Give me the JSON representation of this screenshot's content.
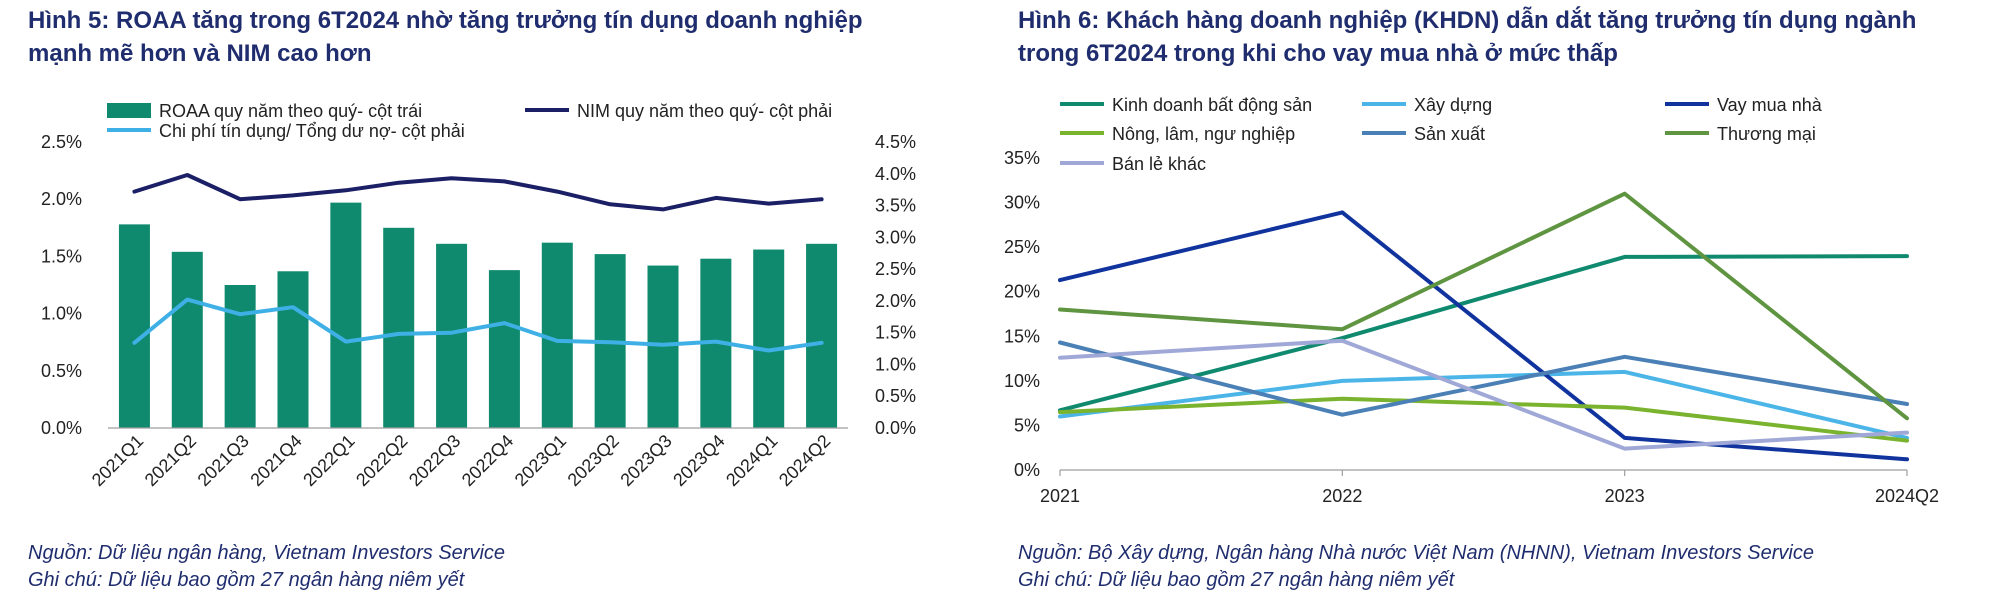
{
  "figures": [
    {
      "title_line1": "Hình 5: ROAA tăng trong 6T2024 nhờ tăng trưởng tín dụng doanh nghiệp",
      "title_line2": "mạnh mẽ hơn và NIM cao hơn",
      "source": "Nguồn: Dữ liệu ngân hàng, Vietnam Investors Service",
      "note": "Ghi chú: Dữ liệu bao gồm 27 ngân hàng niêm yết"
    },
    {
      "title_line1": "Hình 6: Khách hàng doanh nghiệp (KHDN) dẫn dắt tăng trưởng tín dụng ngành",
      "title_line2": "trong 6T2024 trong khi cho vay mua nhà ở mức thấp",
      "source": "Nguồn: Bộ Xây dựng, Ngân hàng Nhà nước Việt Nam (NHNN), Vietnam Investors Service",
      "note": "Ghi chú: Dữ liệu bao gồm 27 ngân hàng niêm yết"
    }
  ],
  "chart_data": [
    {
      "type": "bar",
      "categories": [
        "2021Q1",
        "2021Q2",
        "2021Q3",
        "2021Q4",
        "2022Q1",
        "2022Q2",
        "2022Q3",
        "2022Q4",
        "2023Q1",
        "2023Q2",
        "2023Q3",
        "2023Q4",
        "2024Q1",
        "2024Q2"
      ],
      "series": [
        {
          "name": "ROAA quy năm theo quý- cột trái",
          "kind": "bar",
          "axis": "left",
          "color": "#0f8a6e",
          "values": [
            1.78,
            1.54,
            1.25,
            1.37,
            1.97,
            1.75,
            1.61,
            1.38,
            1.62,
            1.52,
            1.42,
            1.48,
            1.56,
            1.61
          ]
        },
        {
          "name": "NIM quy năm theo quý- cột phải",
          "kind": "line",
          "axis": "right",
          "color": "#1b1f66",
          "values": [
            3.72,
            3.98,
            3.6,
            3.66,
            3.74,
            3.86,
            3.93,
            3.88,
            3.72,
            3.52,
            3.44,
            3.62,
            3.53,
            3.6
          ]
        },
        {
          "name": "Chi phí tín dụng/ Tổng dư nợ- cột phải",
          "kind": "line",
          "axis": "right",
          "color": "#3fb0e6",
          "values": [
            1.34,
            2.02,
            1.79,
            1.9,
            1.36,
            1.48,
            1.5,
            1.65,
            1.37,
            1.35,
            1.31,
            1.36,
            1.22,
            1.34
          ]
        }
      ],
      "y_left": {
        "ticks": [
          "0.0%",
          "0.5%",
          "1.0%",
          "1.5%",
          "2.0%",
          "2.5%"
        ],
        "range": [
          0,
          2.5
        ]
      },
      "y_right": {
        "ticks": [
          "0.0%",
          "0.5%",
          "1.0%",
          "1.5%",
          "2.0%",
          "2.5%",
          "3.0%",
          "3.5%",
          "4.0%",
          "4.5%"
        ],
        "range": [
          0,
          4.5
        ]
      },
      "legend_placement": "top",
      "grid": false
    },
    {
      "type": "line",
      "categories": [
        "2021",
        "2022",
        "2023",
        "2024Q2"
      ],
      "series": [
        {
          "name": "Kinh doanh bất động sản",
          "color": "#108a6e",
          "values": [
            6.7,
            14.8,
            23.9,
            24.0
          ]
        },
        {
          "name": "Xây dựng",
          "color": "#4cb5e8",
          "values": [
            6.0,
            10.0,
            11.0,
            3.6
          ]
        },
        {
          "name": "Vay mua nhà",
          "color": "#10339e",
          "values": [
            21.3,
            28.9,
            3.6,
            1.2
          ]
        },
        {
          "name": "Nông, lâm, ngư nghiệp",
          "color": "#7ab32e",
          "values": [
            6.5,
            8.0,
            7.0,
            3.3
          ]
        },
        {
          "name": "Sản xuất",
          "color": "#4a80b5",
          "values": [
            14.3,
            6.2,
            12.7,
            7.4
          ]
        },
        {
          "name": "Thương mại",
          "color": "#5f9440",
          "values": [
            18.0,
            15.8,
            31.0,
            5.8
          ]
        },
        {
          "name": "Bán lẻ khác",
          "color": "#9fa8d6",
          "values": [
            12.6,
            14.5,
            2.4,
            4.2
          ]
        }
      ],
      "y": {
        "ticks": [
          "0%",
          "5%",
          "10%",
          "15%",
          "20%",
          "25%",
          "30%",
          "35%"
        ],
        "range": [
          0,
          35
        ]
      },
      "legend_placement": "top",
      "grid": false
    }
  ]
}
